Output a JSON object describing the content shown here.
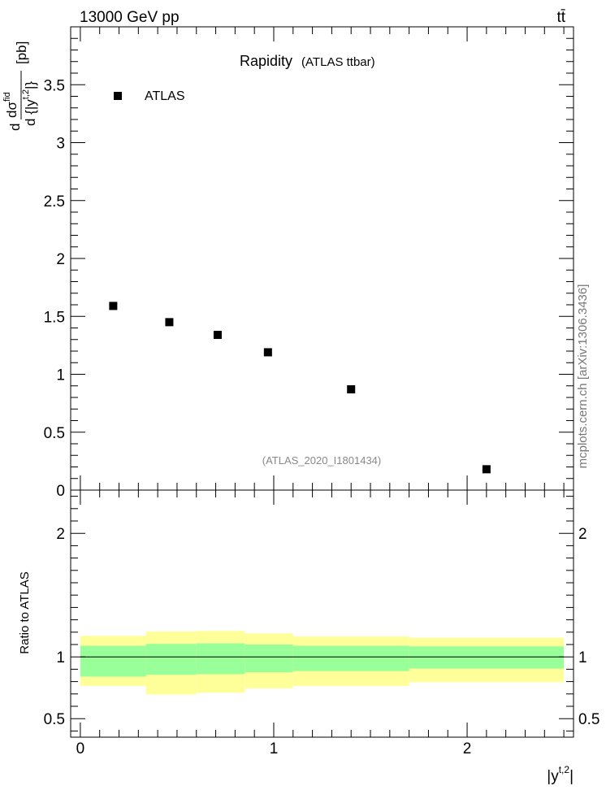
{
  "header": {
    "left_label": "13000 GeV pp",
    "right_label": "tt̄"
  },
  "side_label": "mcplots.cern.ch [arXiv:1306.3436]",
  "chart_data": [
    {
      "type": "scatter",
      "title": "Rapidity",
      "subtitle": "(ATLAS ttbar)",
      "ylabel": "d σ^fid / d {|y^t,2|} [pb]",
      "ylabel_parts": {
        "d": "d",
        "sigma": "dσ",
        "sup": "fid",
        "den": "d {|y",
        "den_sup": "t,2",
        "den_end": "|}",
        "unit": "[pb]"
      },
      "analysis_id": "(ATLAS_2020_I1801434)",
      "xlim": [
        -0.05,
        2.55
      ],
      "ylim": [
        0,
        4
      ],
      "yticks": [
        0,
        0.5,
        1,
        1.5,
        2,
        2.5,
        3,
        3.5
      ],
      "ytick_labels": [
        "0",
        "0.5",
        "1",
        "1.5",
        "2",
        "2.5",
        "3",
        "3.5"
      ],
      "legend": {
        "label": "ATLAS",
        "position": "top-left"
      },
      "series": [
        {
          "name": "ATLAS",
          "x": [
            0.17,
            0.46,
            0.71,
            0.97,
            1.4,
            2.1
          ],
          "y": [
            1.59,
            1.45,
            1.34,
            1.19,
            0.87,
            0.18
          ]
        }
      ]
    },
    {
      "type": "area",
      "ylabel": "Ratio to ATLAS",
      "xlabel": "|y^t,2|",
      "xlabel_parts": {
        "base": "|y",
        "sup": "t,2",
        "end": "|"
      },
      "xlim": [
        -0.05,
        2.55
      ],
      "ylim": [
        0.35,
        2.35
      ],
      "xticks": [
        0,
        1,
        2
      ],
      "xtick_labels": [
        "0",
        "1",
        "2"
      ],
      "yticks": [
        0.5,
        1,
        2
      ],
      "ytick_labels": [
        "0.5",
        "1",
        "2"
      ],
      "reference_line": 1,
      "bin_edges": [
        0,
        0.34,
        0.6,
        0.85,
        1.1,
        1.7,
        2.5
      ],
      "bands": [
        {
          "name": "outer uncertainty",
          "color": "#ffff99",
          "low": [
            0.765,
            0.695,
            0.71,
            0.745,
            0.765,
            0.795
          ],
          "high": [
            1.17,
            1.205,
            1.21,
            1.19,
            1.165,
            1.155
          ]
        },
        {
          "name": "inner uncertainty",
          "color": "#99ff99",
          "low": [
            0.84,
            0.855,
            0.86,
            0.875,
            0.885,
            0.905
          ],
          "high": [
            1.09,
            1.105,
            1.11,
            1.1,
            1.09,
            1.085
          ]
        }
      ]
    }
  ]
}
